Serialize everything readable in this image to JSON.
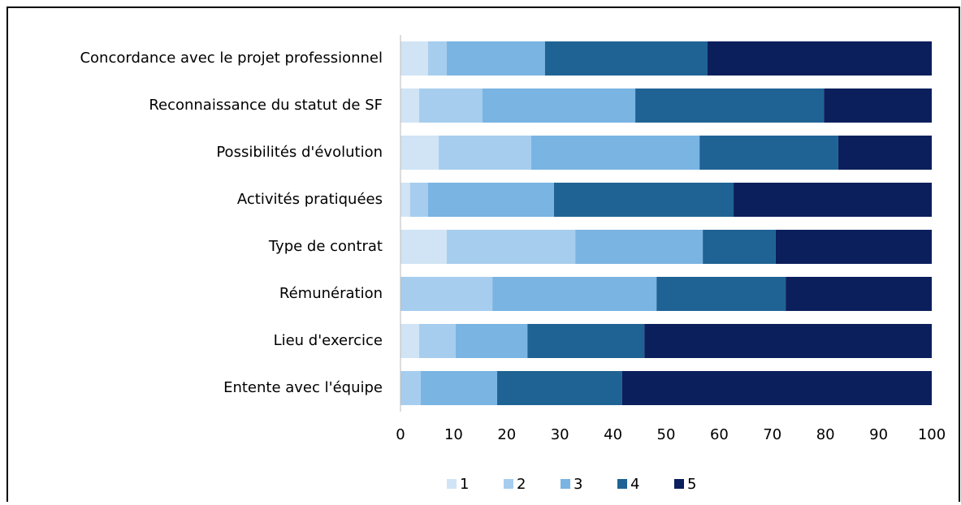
{
  "chart_data": {
    "type": "stacked_bar_horizontal",
    "categories": [
      "Concordance avec le projet professionnel",
      "Reconnaissance du statut de SF",
      "Possibilités d'évolution",
      "Activités pratiquées",
      "Type de contrat",
      "Rémunération",
      "Lieu d'exercice",
      "Entente avec l'équipe"
    ],
    "series": [
      {
        "name": "1",
        "color": "#d0e4f5",
        "values": [
          5.2,
          3.5,
          7.2,
          1.8,
          8.7,
          0,
          3.5,
          0
        ]
      },
      {
        "name": "2",
        "color": "#a6cdee",
        "values": [
          3.5,
          11.9,
          17.4,
          3.4,
          24.2,
          17.3,
          6.9,
          3.8
        ]
      },
      {
        "name": "3",
        "color": "#79b4e3",
        "values": [
          18.5,
          28.8,
          31.7,
          23.7,
          24.0,
          30.9,
          13.5,
          14.4
        ]
      },
      {
        "name": "4",
        "color": "#1f6395",
        "values": [
          30.6,
          35.5,
          26.1,
          33.8,
          13.7,
          24.3,
          22.0,
          23.5
        ]
      },
      {
        "name": "5",
        "color": "#0b1f5c",
        "values": [
          42.2,
          20.3,
          17.6,
          37.3,
          29.4,
          27.5,
          54.1,
          58.3
        ]
      }
    ],
    "xlim": [
      0,
      100
    ],
    "xticks": [
      0,
      10,
      20,
      30,
      40,
      50,
      60,
      70,
      80,
      90,
      100
    ],
    "legend": "bottom"
  }
}
